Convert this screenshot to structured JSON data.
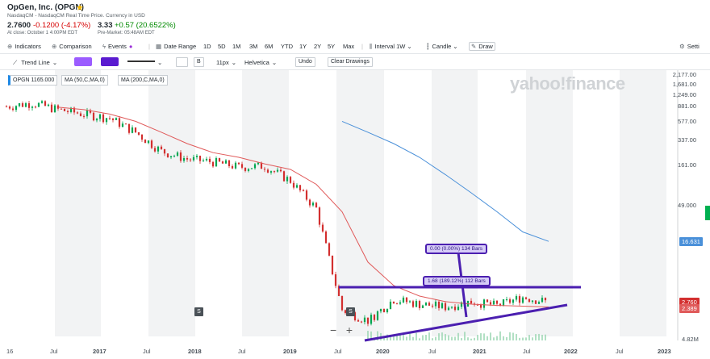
{
  "header": {
    "name": "OpGen, Inc. (OPGN)",
    "exchange_note": "NasdaqCM - NasdaqCM Real Time Price. Currency in USD",
    "close_price": "2.7600",
    "close_change": "-0.1200 (-4.17%)",
    "close_note": "At close: October 1 4:00PM EDT",
    "pre_price": "3.33",
    "pre_change": "+0.57 (20.6522%)",
    "pre_note": "Pre-Market: 05:48AM EDT",
    "star_icon": "star-icon"
  },
  "toolbar": {
    "indicators": "Indicators",
    "comparison": "Comparison",
    "events": "Events",
    "date_range": "Date Range",
    "ranges": [
      "1D",
      "5D",
      "1M",
      "3M",
      "6M",
      "YTD",
      "1Y",
      "2Y",
      "5Y",
      "Max"
    ],
    "interval": "Interval 1W",
    "candle": "Candle",
    "draw": "Draw",
    "settings": "Setti"
  },
  "drawing_toolbar": {
    "tool": "Trend Line",
    "fill_color": "#9b5cff",
    "line_color": "#5a1bd0",
    "bold": "B",
    "size": "11px",
    "font": "Helvetica",
    "undo": "Undo",
    "clear": "Clear Drawings"
  },
  "legend": {
    "opgn": "OPGN 1165.000",
    "ma50": "MA (50,C,MA,0)",
    "ma200": "MA (200,C,MA,0)"
  },
  "watermark": "yahoo!finance",
  "zoom": {
    "minus": "−",
    "plus": "+"
  },
  "price_tags": {
    "last": "2.760",
    "ma50": "2.389",
    "ma200": "16.631",
    "volume": "4.82M"
  },
  "annotations": {
    "top": "0.00 (0.00%) 134 Bars",
    "mid": "1.68 (189.12%) 112 Bars"
  },
  "split_badge": "S",
  "colors": {
    "up": "#00a651",
    "down": "#d32f2f",
    "ma50": "#e05a5a",
    "ma200": "#4a90d9",
    "draw": "#4b1fb0"
  },
  "chart_data": {
    "type": "line",
    "title": "",
    "xlabel": "",
    "ylabel": "",
    "y_scale": "log",
    "ylim": [
      1,
      2177
    ],
    "y_ticks": [
      "2,177.00",
      "1,681.00",
      "1,249.00",
      "881.00",
      "577.00",
      "337.00",
      "161.00",
      "49.000"
    ],
    "x_ticks": [
      "16",
      "Jul",
      "2017",
      "Jul",
      "2018",
      "Jul",
      "2019",
      "Jul",
      "2020",
      "Jul",
      "2021",
      "Jul",
      "2022",
      "Jul",
      "2023"
    ],
    "x": [
      "2016-07",
      "2016-10",
      "2017-01",
      "2017-04",
      "2017-07",
      "2017-10",
      "2018-01",
      "2018-04",
      "2018-07",
      "2018-10",
      "2019-01",
      "2019-04",
      "2019-07",
      "2019-10",
      "2020-01",
      "2020-04",
      "2020-07",
      "2020-10",
      "2021-01",
      "2021-04",
      "2021-07",
      "2021-09"
    ],
    "series": [
      {
        "name": "OPGN",
        "values": [
          900,
          1000,
          820,
          720,
          640,
          420,
          240,
          190,
          175,
          150,
          155,
          100,
          44,
          2.2,
          1.6,
          3.0,
          2.6,
          2.4,
          2.8,
          2.5,
          3.2,
          2.76
        ]
      },
      {
        "name": "MA (50,C,MA,0)",
        "values": [
          null,
          null,
          880,
          820,
          720,
          580,
          420,
          300,
          230,
          200,
          165,
          140,
          90,
          40,
          9,
          4.5,
          3.3,
          2.8,
          2.6,
          2.5,
          2.45,
          2.389
        ]
      },
      {
        "name": "MA (200,C,MA,0)",
        "values": [
          null,
          null,
          null,
          null,
          null,
          null,
          null,
          null,
          null,
          null,
          null,
          null,
          null,
          580,
          420,
          300,
          200,
          120,
          70,
          40,
          22,
          16.631
        ]
      }
    ]
  }
}
